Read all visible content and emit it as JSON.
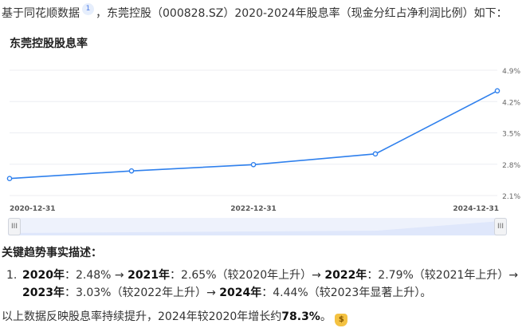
{
  "intro": {
    "prefix": "基于同花顺数据",
    "ref": "1",
    "rest": "，东莞控股（000828.SZ）2020-2024年股息率（现金分红占净利润比例）如下："
  },
  "chart": {
    "title": "东莞控股股息率",
    "line_color": "#2f80ed",
    "slider": {
      "left_handle": "III",
      "right_handle": "III"
    }
  },
  "chart_data": {
    "type": "line",
    "title": "东莞控股股息率",
    "x": [
      "2020-12-31",
      "2021-12-31",
      "2022-12-31",
      "2023-12-31",
      "2024-12-31"
    ],
    "x_tick_labels": [
      "2020-12-31",
      "2022-12-31",
      "2024-12-31"
    ],
    "series": [
      {
        "values": [
          2.48,
          2.65,
          2.79,
          3.03,
          4.44
        ]
      }
    ],
    "y_tick_labels": [
      "4.9%",
      "4.2%",
      "3.5%",
      "2.8%",
      "2.1%"
    ],
    "y_ticks": [
      4.9,
      4.2,
      3.5,
      2.8,
      2.1
    ],
    "ylim": [
      2.1,
      4.9
    ],
    "y_axis_position": "right",
    "grid": true,
    "legend": "none"
  },
  "facts": {
    "heading": "关键趋势事实描述：",
    "num": "1.",
    "items": [
      {
        "year": "2020年",
        "text": "：2.48% → "
      },
      {
        "year": "2021年",
        "text": "：2.65%（较2020年上升）→ "
      },
      {
        "year": "2022年",
        "text": "：2.79%（较2021年上升）→"
      },
      {
        "year": "2023年",
        "text": "：3.03%（较2022年上升）→ "
      },
      {
        "year": "2024年",
        "text": "：4.44%（较2023年显著上升）。"
      }
    ]
  },
  "footer": {
    "text": "以上数据反映股息率持续提升，2024年较2020年增长约",
    "highlight": "78.3%",
    "end": "。",
    "icon": "money-bag-icon"
  }
}
